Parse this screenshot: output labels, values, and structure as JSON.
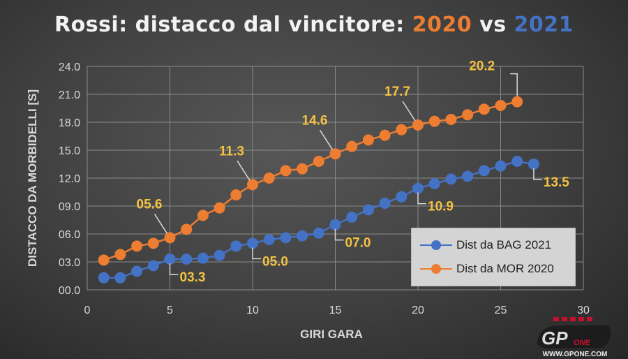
{
  "title": {
    "prefix": "Rossi: distacco dal vincitore: ",
    "year1": "2020",
    "vs": " vs ",
    "year2": "2021"
  },
  "colors": {
    "orange": "#ed7d31",
    "blue": "#4472c4",
    "label": "#f5c242"
  },
  "watermark": {
    "text": "GP ONE",
    "url_text": "WWW.GPONE.COM"
  },
  "chart_data": {
    "type": "line",
    "title": "Rossi: distacco dal vincitore: 2020 vs 2021",
    "xlabel": "GIRI GARA",
    "ylabel": "DISTACCO DA MORBIDELLI [S]",
    "xlim": [
      0,
      30
    ],
    "ylim": [
      0,
      24
    ],
    "xticks": [
      "0",
      "5",
      "10",
      "15",
      "20",
      "25",
      "30"
    ],
    "yticks": [
      "00.0",
      "03.0",
      "06.0",
      "09.0",
      "12.0",
      "15.0",
      "18.0",
      "21.0",
      "24.0"
    ],
    "grid": true,
    "legend": "bottom-right",
    "series": [
      {
        "name": "Dist da BAG 2021",
        "color": "#4472c4",
        "x": [
          1,
          2,
          3,
          4,
          5,
          6,
          7,
          8,
          9,
          10,
          11,
          12,
          13,
          14,
          15,
          16,
          17,
          18,
          19,
          20,
          21,
          22,
          23,
          24,
          25,
          26,
          27
        ],
        "y": [
          1.3,
          1.3,
          2.0,
          2.6,
          3.3,
          3.3,
          3.4,
          3.7,
          4.7,
          5.0,
          5.4,
          5.6,
          5.8,
          6.1,
          7.0,
          7.8,
          8.6,
          9.3,
          10.0,
          10.9,
          11.4,
          11.9,
          12.2,
          12.8,
          13.3,
          13.8,
          13.5
        ],
        "labels": [
          {
            "x": 5,
            "text": "03.3"
          },
          {
            "x": 10,
            "text": "05.0"
          },
          {
            "x": 15,
            "text": "07.0"
          },
          {
            "x": 20,
            "text": "10.9"
          },
          {
            "x": 27,
            "text": "13.5"
          }
        ]
      },
      {
        "name": "Dist da MOR 2020",
        "color": "#ed7d31",
        "x": [
          1,
          2,
          3,
          4,
          5,
          6,
          7,
          8,
          9,
          10,
          11,
          12,
          13,
          14,
          15,
          16,
          17,
          18,
          19,
          20,
          21,
          22,
          23,
          24,
          25,
          26
        ],
        "y": [
          3.2,
          3.8,
          4.7,
          5.0,
          5.6,
          6.5,
          8.0,
          8.8,
          10.2,
          11.3,
          12.0,
          12.8,
          13.0,
          13.8,
          14.6,
          15.4,
          16.1,
          16.6,
          17.2,
          17.7,
          18.1,
          18.3,
          18.8,
          19.4,
          19.8,
          20.2
        ],
        "labels": [
          {
            "x": 5,
            "text": "05.6"
          },
          {
            "x": 10,
            "text": "11.3"
          },
          {
            "x": 15,
            "text": "14.6"
          },
          {
            "x": 20,
            "text": "17.7"
          },
          {
            "x": 26,
            "text": "20.2"
          }
        ]
      }
    ]
  }
}
